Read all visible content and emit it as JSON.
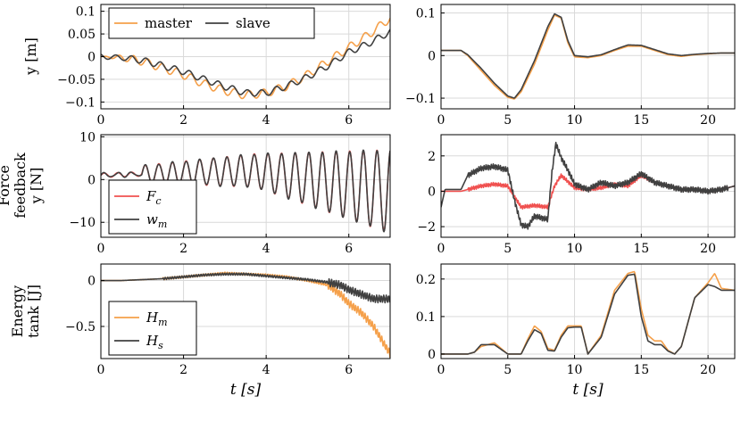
{
  "colors": {
    "master": "#f5a04a",
    "slave": "#404040",
    "force_red": "#f0504f",
    "grid": "#d9d9d9",
    "axis": "#000000"
  },
  "row_labels": [
    {
      "lines": [
        "y [m]"
      ]
    },
    {
      "lines": [
        "Force",
        "feedback",
        "y [N]"
      ]
    },
    {
      "lines": [
        "Energy",
        "tank [J]"
      ]
    }
  ],
  "x_axis_label": "t [s]",
  "chart_data": [
    {
      "type": "line",
      "panel": "top-left",
      "xlim": [
        0,
        7
      ],
      "ylim": [
        -0.115,
        0.115
      ],
      "xticks": [
        0,
        2,
        4,
        6
      ],
      "xtick_labels": [
        "0",
        "2",
        "4",
        "6"
      ],
      "yticks": [
        0.1,
        0.05,
        0,
        -0.05,
        -0.1
      ],
      "ytick_labels": [
        "0.1",
        "0.05",
        "0",
        "−0.05",
        "−0.1"
      ],
      "ylabel": "y [m]",
      "grid": true,
      "legend": "top-left, horizontal",
      "series": [
        {
          "name": "master",
          "color_key": "master",
          "osc_amp": 0.009,
          "osc_period": 0.35,
          "x": [
            0,
            0.5,
            1,
            1.5,
            2,
            2.5,
            3,
            3.5,
            4,
            4.5,
            5,
            5.5,
            6,
            6.5,
            7
          ],
          "y": [
            0,
            -0.002,
            -0.01,
            -0.025,
            -0.04,
            -0.06,
            -0.075,
            -0.085,
            -0.08,
            -0.065,
            -0.04,
            -0.01,
            0.02,
            0.05,
            0.085
          ]
        },
        {
          "name": "slave",
          "color_key": "slave",
          "osc_amp": 0.007,
          "osc_period": 0.35,
          "x": [
            0,
            0.5,
            1,
            1.5,
            2,
            2.5,
            3,
            3.5,
            4,
            4.5,
            5,
            5.5,
            6,
            6.5,
            7
          ],
          "y": [
            0,
            -0.002,
            -0.008,
            -0.02,
            -0.033,
            -0.05,
            -0.066,
            -0.08,
            -0.08,
            -0.065,
            -0.045,
            -0.02,
            0.01,
            0.03,
            0.055
          ]
        }
      ]
    },
    {
      "type": "line",
      "panel": "top-right",
      "xlim": [
        0,
        22
      ],
      "ylim": [
        -0.125,
        0.12
      ],
      "xticks": [
        0,
        5,
        10,
        15,
        20
      ],
      "xtick_labels": [
        "0",
        "5",
        "10",
        "15",
        "20"
      ],
      "yticks": [
        0.1,
        0,
        -0.1
      ],
      "ytick_labels": [
        "0.1",
        "0",
        "−0.1"
      ],
      "grid": true,
      "series": [
        {
          "name": "master",
          "color_key": "master",
          "x": [
            0,
            1.5,
            2,
            3,
            4,
            5,
            5.5,
            6,
            7,
            8,
            8.5,
            9,
            9.5,
            10,
            11,
            12,
            13,
            14,
            15,
            16,
            17,
            18,
            19,
            20,
            21,
            22
          ],
          "y": [
            0.012,
            0.012,
            0,
            -0.035,
            -0.07,
            -0.098,
            -0.102,
            -0.085,
            -0.02,
            0.06,
            0.095,
            0.088,
            0.03,
            -0.003,
            -0.005,
            0,
            0.012,
            0.022,
            0.022,
            0.012,
            0.002,
            -0.002,
            0.002,
            0.004,
            0.006,
            0.006
          ]
        },
        {
          "name": "slave",
          "color_key": "slave",
          "x": [
            0,
            1.5,
            2,
            3,
            4,
            5,
            5.5,
            6,
            7,
            8,
            8.5,
            9,
            9.5,
            10,
            11,
            12,
            13,
            14,
            15,
            16,
            17,
            18,
            19,
            20,
            21,
            22
          ],
          "y": [
            0.012,
            0.012,
            0.002,
            -0.03,
            -0.065,
            -0.095,
            -0.1,
            -0.08,
            -0.012,
            0.068,
            0.098,
            0.09,
            0.035,
            0,
            -0.003,
            0.002,
            0.014,
            0.025,
            0.024,
            0.014,
            0.004,
            0,
            0.003,
            0.005,
            0.006,
            0.006
          ]
        }
      ]
    },
    {
      "type": "line",
      "panel": "middle-left",
      "xlim": [
        0,
        7
      ],
      "ylim": [
        -13.5,
        10.5
      ],
      "xticks": [
        0,
        2,
        4,
        6
      ],
      "xtick_labels": [
        "0",
        "2",
        "4",
        "6"
      ],
      "yticks": [
        10,
        0,
        -10
      ],
      "ytick_labels": [
        "10",
        "0",
        "−10"
      ],
      "ylabel": "Force feedback y [N]",
      "grid": true,
      "legend": "bottom-left, vertical",
      "series": [
        {
          "name": "F_c",
          "label_main": "F",
          "label_sub": "c",
          "color_key": "force_red",
          "x": [
            0,
            0.5,
            1,
            1.5,
            2,
            2.5,
            3,
            3.5,
            3.8,
            4,
            4.5,
            5,
            5.5,
            6,
            6.5,
            7
          ],
          "y": [
            1,
            1.2,
            1.5,
            1.8,
            2,
            2,
            2,
            2.2,
            2,
            0,
            -1,
            -1.5,
            -2,
            -2.5,
            -3,
            -3
          ]
        },
        {
          "name": "w_m",
          "label_main": "w",
          "label_sub": "m",
          "color_key": "slave",
          "x": [
            0,
            0.5,
            1,
            1.5,
            2,
            2.5,
            3,
            3.5,
            3.8,
            4,
            4.5,
            5,
            5.5,
            6,
            6.5,
            7
          ],
          "y": [
            1,
            1.2,
            1.5,
            1.8,
            2,
            2,
            2,
            2.2,
            2,
            0,
            -1,
            -1.5,
            -2,
            -2.5,
            -3,
            -3
          ]
        }
      ]
    },
    {
      "type": "line",
      "panel": "middle-right",
      "xlim": [
        0,
        22
      ],
      "ylim": [
        -2.6,
        3.2
      ],
      "xticks": [
        0,
        5,
        10,
        15,
        20
      ],
      "xtick_labels": [
        "0",
        "5",
        "10",
        "15",
        "20"
      ],
      "yticks": [
        2,
        0,
        -2
      ],
      "ytick_labels": [
        "2",
        "0",
        "−2"
      ],
      "grid": true,
      "series": [
        {
          "name": "F_c",
          "color_key": "force_red",
          "x": [
            0,
            1.5,
            2,
            3,
            4,
            5,
            5.5,
            6,
            7,
            8,
            8.5,
            9,
            10,
            11,
            12,
            13,
            14,
            15,
            16,
            17,
            18,
            19,
            20,
            21,
            22
          ],
          "y": [
            0,
            0,
            0.1,
            0.3,
            0.4,
            0.3,
            -0.3,
            -0.9,
            -0.8,
            -0.9,
            0.3,
            0.9,
            0.2,
            0.1,
            0.2,
            0.4,
            0.3,
            0.9,
            0.5,
            0.3,
            0.1,
            0.1,
            0,
            0.1,
            0.3
          ]
        },
        {
          "name": "w_m",
          "color_key": "slave",
          "x": [
            0,
            0.3,
            1.5,
            2,
            3,
            4,
            5,
            5.5,
            6,
            6.5,
            7,
            8,
            8.3,
            8.6,
            9,
            9.5,
            10,
            11,
            12,
            13,
            14,
            15,
            16,
            17,
            18,
            19,
            20,
            21,
            22
          ],
          "y": [
            -0.9,
            0.1,
            0.1,
            0.9,
            1.3,
            1.4,
            1.2,
            -0.5,
            -1.9,
            -2.0,
            -1.4,
            -1.6,
            1.0,
            2.7,
            1.9,
            1.2,
            0.4,
            0.1,
            0.5,
            0.3,
            0.5,
            1.0,
            0.5,
            0.3,
            0.1,
            0.1,
            0,
            0.1,
            0.3
          ]
        }
      ]
    },
    {
      "type": "line",
      "panel": "bottom-left",
      "xlim": [
        0,
        7
      ],
      "ylim": [
        -0.85,
        0.18
      ],
      "xticks": [
        0,
        2,
        4,
        6
      ],
      "xtick_labels": [
        "0",
        "2",
        "4",
        "6"
      ],
      "yticks": [
        0,
        -0.5
      ],
      "ytick_labels": [
        "0",
        "−0.5"
      ],
      "xlabel": "t [s]",
      "ylabel": "Energy tank [J]",
      "grid": true,
      "legend": "bottom-left, vertical",
      "series": [
        {
          "name": "H_m",
          "label_main": "H",
          "label_sub": "m",
          "color_key": "master",
          "x": [
            0,
            0.5,
            1,
            1.5,
            2,
            2.5,
            3,
            3.5,
            4,
            4.5,
            5,
            5.5,
            5.8,
            6,
            6.3,
            6.6,
            6.8,
            7
          ],
          "y": [
            0,
            0,
            0.01,
            0.02,
            0.04,
            0.06,
            0.08,
            0.07,
            0.06,
            0.04,
            0,
            -0.05,
            -0.15,
            -0.25,
            -0.35,
            -0.5,
            -0.65,
            -0.8
          ]
        },
        {
          "name": "H_s",
          "label_main": "H",
          "label_sub": "s",
          "color_key": "slave",
          "x": [
            0,
            0.5,
            1,
            1.5,
            2,
            2.5,
            3,
            3.5,
            4,
            4.5,
            5,
            5.5,
            5.8,
            6,
            6.3,
            6.6,
            6.8,
            7
          ],
          "y": [
            0,
            0,
            0.01,
            0.02,
            0.04,
            0.06,
            0.07,
            0.07,
            0.05,
            0.03,
            0.01,
            -0.02,
            -0.05,
            -0.1,
            -0.15,
            -0.2,
            -0.2,
            -0.2
          ]
        }
      ]
    },
    {
      "type": "line",
      "panel": "bottom-right",
      "xlim": [
        0,
        22
      ],
      "ylim": [
        -0.012,
        0.24
      ],
      "xticks": [
        0,
        5,
        10,
        15,
        20
      ],
      "xtick_labels": [
        "0",
        "5",
        "10",
        "15",
        "20"
      ],
      "yticks": [
        0.2,
        0.1,
        0
      ],
      "ytick_labels": [
        "0.2",
        "0.1",
        "0"
      ],
      "xlabel": "t [s]",
      "grid": true,
      "series": [
        {
          "name": "H_m",
          "color_key": "master",
          "x": [
            0,
            2,
            2.5,
            3,
            4,
            5,
            6,
            6.5,
            7,
            7.5,
            8,
            8.5,
            9,
            9.5,
            10,
            10.5,
            11,
            12,
            13,
            14,
            14.5,
            15,
            15.5,
            16,
            16.5,
            17,
            17.5,
            18,
            19,
            20,
            20.5,
            21,
            22
          ],
          "y": [
            0,
            0,
            0.005,
            0.02,
            0.03,
            0,
            0,
            0.04,
            0.075,
            0.06,
            0.015,
            0.01,
            0.05,
            0.075,
            0.075,
            0.075,
            0,
            0.05,
            0.17,
            0.215,
            0.22,
            0.12,
            0.05,
            0.035,
            0.035,
            0.01,
            0,
            0.02,
            0.15,
            0.19,
            0.215,
            0.175,
            0.17
          ]
        },
        {
          "name": "H_s",
          "color_key": "slave",
          "x": [
            0,
            2,
            2.5,
            3,
            4,
            5,
            6,
            6.5,
            7,
            7.5,
            8,
            8.5,
            9,
            9.5,
            10,
            10.5,
            11,
            12,
            13,
            14,
            14.5,
            15,
            15.5,
            16,
            16.5,
            17,
            17.5,
            18,
            19,
            20,
            20.5,
            21,
            22
          ],
          "y": [
            0,
            0,
            0.005,
            0.025,
            0.025,
            0,
            0,
            0.035,
            0.065,
            0.055,
            0.01,
            0.008,
            0.045,
            0.07,
            0.072,
            0.072,
            0,
            0.045,
            0.16,
            0.21,
            0.213,
            0.1,
            0.035,
            0.025,
            0.025,
            0.008,
            0,
            0.02,
            0.15,
            0.185,
            0.18,
            0.17,
            0.17
          ]
        }
      ]
    }
  ]
}
